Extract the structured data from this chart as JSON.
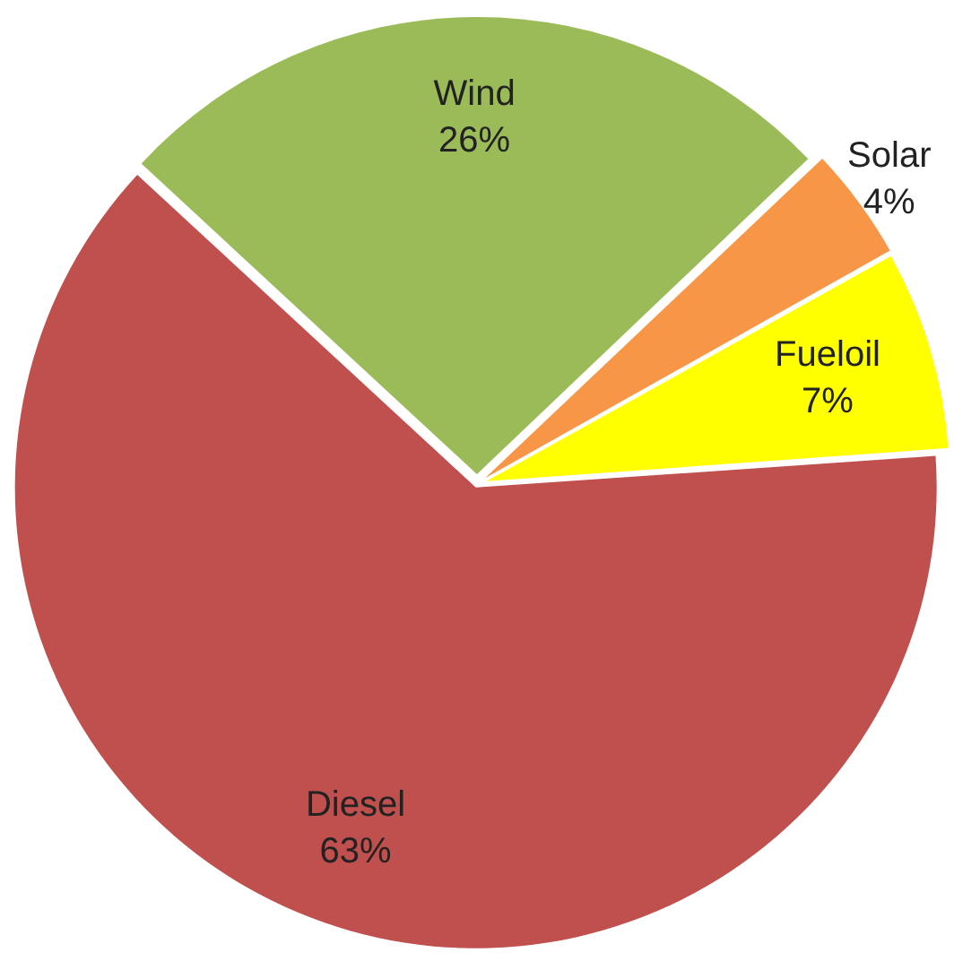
{
  "chart_data": {
    "type": "pie",
    "categories": [
      "Wind",
      "Solar",
      "Fueloil",
      "Diesel"
    ],
    "values": [
      26,
      4,
      7,
      63
    ],
    "value_labels": [
      "26%",
      "4%",
      "7%",
      "63%"
    ],
    "colors": [
      "#9bbb59",
      "#f79646",
      "#ffff00",
      "#c0504d"
    ],
    "legend": false
  }
}
